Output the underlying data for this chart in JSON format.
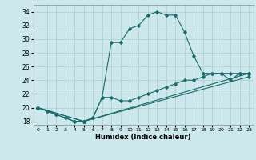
{
  "xlabel": "Humidex (Indice chaleur)",
  "bg_color": "#cce8ec",
  "grid_color": "#aacccc",
  "line_color": "#1a6b6b",
  "xlim": [
    -0.5,
    23.5
  ],
  "ylim": [
    17.5,
    35.0
  ],
  "yticks": [
    18,
    20,
    22,
    24,
    26,
    28,
    30,
    32,
    34
  ],
  "xticks": [
    0,
    1,
    2,
    3,
    4,
    5,
    6,
    7,
    8,
    9,
    10,
    11,
    12,
    13,
    14,
    15,
    16,
    17,
    18,
    19,
    20,
    21,
    22,
    23
  ],
  "lines": [
    {
      "x": [
        0,
        1,
        2,
        3,
        4,
        5,
        6,
        7,
        8,
        9,
        10,
        11,
        12,
        13,
        14,
        15,
        16,
        17,
        18,
        19,
        20,
        21,
        22,
        23
      ],
      "y": [
        20,
        19.5,
        19,
        18.5,
        18,
        18,
        18.5,
        21.5,
        29.5,
        29.5,
        31.5,
        32,
        33.5,
        34,
        33.5,
        33.5,
        31,
        27.5,
        25,
        25,
        25,
        24,
        25,
        25
      ]
    },
    {
      "x": [
        0,
        1,
        2,
        3,
        4,
        5,
        6,
        7,
        8,
        9,
        10,
        11,
        12,
        13,
        14,
        15,
        16,
        17,
        18,
        19,
        20,
        21,
        22,
        23
      ],
      "y": [
        20,
        19.5,
        19,
        18.5,
        18,
        18,
        18.5,
        21.5,
        21.5,
        21,
        21,
        21.5,
        22,
        22.5,
        23,
        23.5,
        24,
        24,
        24.5,
        25,
        25,
        25,
        25,
        25
      ]
    },
    {
      "x": [
        0,
        5,
        23
      ],
      "y": [
        20,
        18,
        25
      ]
    },
    {
      "x": [
        0,
        5,
        23
      ],
      "y": [
        20,
        18,
        24.5
      ]
    }
  ]
}
